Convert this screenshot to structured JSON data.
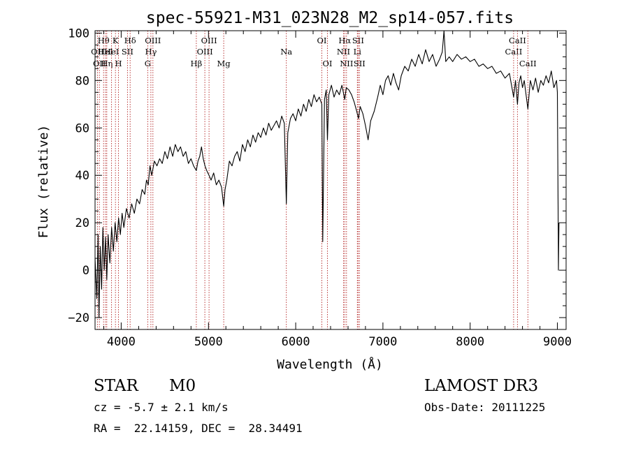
{
  "chart_data": {
    "type": "line",
    "title": "spec-55921-M31_023N28_M2_sp14-057.fits",
    "xlabel": "Wavelength (Å)",
    "ylabel": "Flux (relative)",
    "xlim": [
      3700,
      9100
    ],
    "ylim": [
      -25,
      101
    ],
    "x_ticks": [
      4000,
      5000,
      6000,
      7000,
      8000,
      9000
    ],
    "y_ticks": [
      -20,
      0,
      20,
      40,
      60,
      80,
      100
    ],
    "x_tick_labels": [
      "4000",
      "5000",
      "6000",
      "7000",
      "8000",
      "9000"
    ],
    "y_tick_labels": [
      "−20",
      "0",
      "20",
      "40",
      "60",
      "80",
      "100"
    ],
    "series": [
      {
        "name": "flux",
        "color": "#000000",
        "points": [
          [
            3700,
            5
          ],
          [
            3720,
            -12
          ],
          [
            3735,
            15
          ],
          [
            3745,
            -20
          ],
          [
            3760,
            10
          ],
          [
            3775,
            -8
          ],
          [
            3790,
            18
          ],
          [
            3805,
            0
          ],
          [
            3820,
            14
          ],
          [
            3835,
            -4
          ],
          [
            3850,
            15
          ],
          [
            3870,
            3
          ],
          [
            3890,
            18
          ],
          [
            3910,
            8
          ],
          [
            3930,
            20
          ],
          [
            3950,
            12
          ],
          [
            3970,
            22
          ],
          [
            3990,
            15
          ],
          [
            4010,
            24
          ],
          [
            4030,
            18
          ],
          [
            4060,
            26
          ],
          [
            4090,
            22
          ],
          [
            4120,
            28
          ],
          [
            4150,
            24
          ],
          [
            4180,
            30
          ],
          [
            4210,
            28
          ],
          [
            4240,
            34
          ],
          [
            4270,
            32
          ],
          [
            4290,
            38
          ],
          [
            4310,
            36
          ],
          [
            4330,
            44
          ],
          [
            4350,
            40
          ],
          [
            4380,
            46
          ],
          [
            4410,
            44
          ],
          [
            4440,
            47
          ],
          [
            4470,
            45
          ],
          [
            4500,
            50
          ],
          [
            4530,
            47
          ],
          [
            4560,
            52
          ],
          [
            4590,
            48
          ],
          [
            4620,
            53
          ],
          [
            4650,
            50
          ],
          [
            4680,
            52
          ],
          [
            4710,
            48
          ],
          [
            4740,
            50
          ],
          [
            4770,
            45
          ],
          [
            4800,
            47
          ],
          [
            4830,
            44
          ],
          [
            4861,
            42
          ],
          [
            4880,
            46
          ],
          [
            4900,
            48
          ],
          [
            4920,
            52
          ],
          [
            4940,
            47
          ],
          [
            4960,
            44
          ],
          [
            4980,
            42
          ],
          [
            5007,
            40
          ],
          [
            5030,
            38
          ],
          [
            5060,
            41
          ],
          [
            5090,
            36
          ],
          [
            5120,
            38
          ],
          [
            5150,
            35
          ],
          [
            5175,
            27
          ],
          [
            5190,
            34
          ],
          [
            5210,
            38
          ],
          [
            5240,
            46
          ],
          [
            5270,
            44
          ],
          [
            5300,
            48
          ],
          [
            5330,
            50
          ],
          [
            5360,
            46
          ],
          [
            5390,
            53
          ],
          [
            5420,
            50
          ],
          [
            5450,
            55
          ],
          [
            5480,
            52
          ],
          [
            5510,
            57
          ],
          [
            5540,
            54
          ],
          [
            5570,
            58
          ],
          [
            5600,
            56
          ],
          [
            5630,
            60
          ],
          [
            5660,
            57
          ],
          [
            5690,
            62
          ],
          [
            5720,
            59
          ],
          [
            5750,
            61
          ],
          [
            5780,
            63
          ],
          [
            5810,
            60
          ],
          [
            5840,
            65
          ],
          [
            5870,
            62
          ],
          [
            5893,
            28
          ],
          [
            5910,
            58
          ],
          [
            5940,
            64
          ],
          [
            5970,
            66
          ],
          [
            6000,
            63
          ],
          [
            6030,
            68
          ],
          [
            6060,
            65
          ],
          [
            6090,
            70
          ],
          [
            6120,
            67
          ],
          [
            6150,
            72
          ],
          [
            6180,
            69
          ],
          [
            6210,
            74
          ],
          [
            6240,
            71
          ],
          [
            6270,
            73
          ],
          [
            6300,
            70
          ],
          [
            6310,
            12
          ],
          [
            6330,
            72
          ],
          [
            6350,
            76
          ],
          [
            6364,
            55
          ],
          [
            6380,
            74
          ],
          [
            6410,
            78
          ],
          [
            6440,
            73
          ],
          [
            6470,
            76
          ],
          [
            6500,
            74
          ],
          [
            6530,
            78
          ],
          [
            6563,
            72
          ],
          [
            6580,
            77
          ],
          [
            6610,
            76
          ],
          [
            6640,
            74
          ],
          [
            6670,
            71
          ],
          [
            6700,
            67
          ],
          [
            6720,
            64
          ],
          [
            6740,
            69
          ],
          [
            6770,
            66
          ],
          [
            6800,
            61
          ],
          [
            6830,
            55
          ],
          [
            6860,
            63
          ],
          [
            6900,
            67
          ],
          [
            6940,
            73
          ],
          [
            6970,
            78
          ],
          [
            7000,
            74
          ],
          [
            7030,
            80
          ],
          [
            7060,
            82
          ],
          [
            7090,
            78
          ],
          [
            7120,
            83
          ],
          [
            7150,
            79
          ],
          [
            7180,
            76
          ],
          [
            7210,
            82
          ],
          [
            7250,
            86
          ],
          [
            7290,
            84
          ],
          [
            7330,
            89
          ],
          [
            7370,
            86
          ],
          [
            7410,
            91
          ],
          [
            7450,
            87
          ],
          [
            7490,
            93
          ],
          [
            7530,
            88
          ],
          [
            7570,
            91
          ],
          [
            7610,
            86
          ],
          [
            7650,
            89
          ],
          [
            7680,
            92
          ],
          [
            7700,
            101
          ],
          [
            7720,
            88
          ],
          [
            7760,
            90
          ],
          [
            7800,
            88
          ],
          [
            7850,
            91
          ],
          [
            7900,
            89
          ],
          [
            7950,
            90
          ],
          [
            8000,
            88
          ],
          [
            8050,
            89
          ],
          [
            8100,
            86
          ],
          [
            8150,
            87
          ],
          [
            8200,
            85
          ],
          [
            8250,
            86
          ],
          [
            8300,
            83
          ],
          [
            8350,
            84
          ],
          [
            8400,
            81
          ],
          [
            8450,
            83
          ],
          [
            8498,
            73
          ],
          [
            8520,
            80
          ],
          [
            8542,
            70
          ],
          [
            8560,
            79
          ],
          [
            8580,
            82
          ],
          [
            8600,
            77
          ],
          [
            8620,
            80
          ],
          [
            8662,
            68
          ],
          [
            8690,
            80
          ],
          [
            8720,
            76
          ],
          [
            8750,
            81
          ],
          [
            8780,
            75
          ],
          [
            8810,
            80
          ],
          [
            8840,
            78
          ],
          [
            8870,
            82
          ],
          [
            8900,
            79
          ],
          [
            8930,
            84
          ],
          [
            8960,
            77
          ],
          [
            8990,
            80
          ],
          [
            9000,
            75
          ],
          [
            9010,
            15
          ],
          [
            9012,
            0
          ],
          [
            9018,
            20
          ]
        ]
      }
    ],
    "line_markers": {
      "color": "#b22222",
      "lines": [
        {
          "wavelength": 3727,
          "label": "OII",
          "row": 2
        },
        {
          "wavelength": 3750,
          "label": "OII",
          "row": 3
        },
        {
          "wavelength": 3798,
          "label": "Hθ",
          "row": 1
        },
        {
          "wavelength": 3820,
          "label": "HeI",
          "row": 2
        },
        {
          "wavelength": 3835,
          "label": "Hη",
          "row": 3
        },
        {
          "wavelength": 3889,
          "label": "HeI",
          "row": 2
        },
        {
          "wavelength": 3934,
          "label": "K",
          "row": 1
        },
        {
          "wavelength": 3968,
          "label": "H",
          "row": 3
        },
        {
          "wavelength": 4072,
          "label": "SII",
          "row": 2
        },
        {
          "wavelength": 4102,
          "label": "Hδ",
          "row": 1
        },
        {
          "wavelength": 4304,
          "label": "G",
          "row": 3
        },
        {
          "wavelength": 4340,
          "label": "Hγ",
          "row": 2
        },
        {
          "wavelength": 4363,
          "label": "OIII",
          "row": 1
        },
        {
          "wavelength": 4861,
          "label": "Hβ",
          "row": 3
        },
        {
          "wavelength": 4959,
          "label": "OIII",
          "row": 2
        },
        {
          "wavelength": 5007,
          "label": "OIII",
          "row": 1
        },
        {
          "wavelength": 5175,
          "label": "Mg",
          "row": 3
        },
        {
          "wavelength": 5893,
          "label": "Na",
          "row": 2
        },
        {
          "wavelength": 6300,
          "label": "OI",
          "row": 1
        },
        {
          "wavelength": 6364,
          "label": "OI",
          "row": 3
        },
        {
          "wavelength": 6548,
          "label": "NII",
          "row": 2
        },
        {
          "wavelength": 6563,
          "label": "Hα",
          "row": 1
        },
        {
          "wavelength": 6583,
          "label": "NII",
          "row": 3
        },
        {
          "wavelength": 6707,
          "label": "Li",
          "row": 2
        },
        {
          "wavelength": 6716,
          "label": "SII",
          "row": 1
        },
        {
          "wavelength": 6731,
          "label": "SII",
          "row": 3
        },
        {
          "wavelength": 8498,
          "label": "CaII",
          "row": 2
        },
        {
          "wavelength": 8542,
          "label": "CaII",
          "row": 1
        },
        {
          "wavelength": 8662,
          "label": "CaII",
          "row": 3
        }
      ]
    }
  },
  "info": {
    "object_class": "STAR",
    "subclass": "M0",
    "survey": "LAMOST DR3",
    "redshift": "cz = -5.7 ± 2.1 km/s",
    "obs_date": "Obs-Date: 20111225",
    "coords": "RA =  22.14159, DEC =  28.34491"
  }
}
